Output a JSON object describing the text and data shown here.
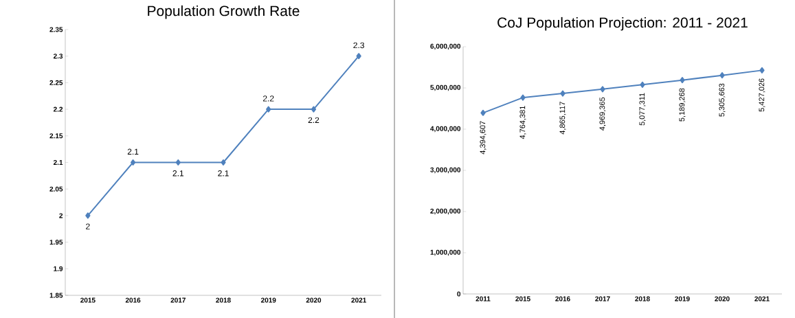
{
  "chart_data": [
    {
      "type": "line",
      "title": "Population Growth Rate",
      "categories": [
        "2015",
        "2016",
        "2017",
        "2018",
        "2019",
        "2020",
        "2021"
      ],
      "values": [
        2,
        2.1,
        2.1,
        2.1,
        2.2,
        2.2,
        2.3
      ],
      "color": "#4f81bd",
      "marker": "diamond",
      "data_labels": true,
      "ylim": [
        1.85,
        2.35
      ],
      "yticks": [
        1.85,
        1.9,
        1.95,
        2,
        2.05,
        2.1,
        2.15,
        2.2,
        2.25,
        2.3,
        2.35
      ]
    },
    {
      "type": "line",
      "title": "CoJ Population  Projection:  2011 - 2021",
      "categories": [
        "2011",
        "2015",
        "2016",
        "2017",
        "2018",
        "2019",
        "2020",
        "2021"
      ],
      "values": [
        4394607,
        4764381,
        4865117,
        4969365,
        5077311,
        5189268,
        5305663,
        5427026
      ],
      "value_labels": [
        "4,394,607",
        "4,764,381",
        "4,865,117",
        "4,969,365",
        "5,077,311",
        "5,189,268",
        "5,305,663",
        "5,427,026"
      ],
      "color": "#4f81bd",
      "marker": "diamond",
      "ylim": [
        0,
        6000000
      ],
      "yticks": [
        0,
        {
          "value": 1000000,
          "label": "1,000,000"
        },
        {
          "value": 2000000,
          "label": "2,000,000"
        },
        {
          "value": 3000000,
          "label": "3,000,000"
        },
        {
          "value": 4000000,
          "label": "4,000,000"
        },
        {
          "value": 5000000,
          "label": "5,000,000"
        },
        {
          "value": 6000000,
          "label": "6,000,000"
        }
      ]
    }
  ]
}
